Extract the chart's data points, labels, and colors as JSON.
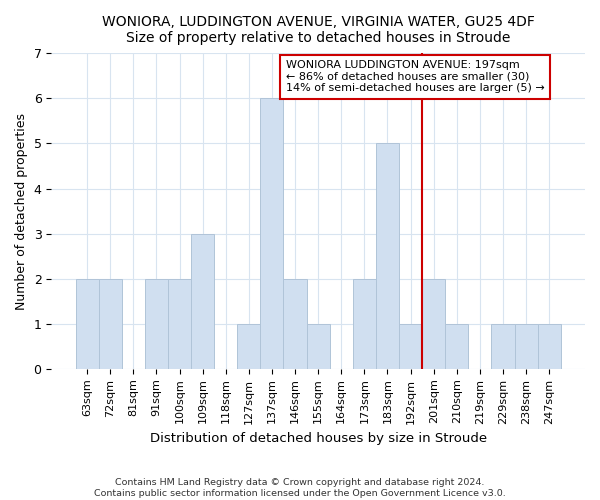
{
  "title1": "WONIORA, LUDDINGTON AVENUE, VIRGINIA WATER, GU25 4DF",
  "title2": "Size of property relative to detached houses in Stroude",
  "xlabel": "Distribution of detached houses by size in Stroude",
  "ylabel": "Number of detached properties",
  "categories": [
    "63sqm",
    "72sqm",
    "81sqm",
    "91sqm",
    "100sqm",
    "109sqm",
    "118sqm",
    "127sqm",
    "137sqm",
    "146sqm",
    "155sqm",
    "164sqm",
    "173sqm",
    "183sqm",
    "192sqm",
    "201sqm",
    "210sqm",
    "219sqm",
    "229sqm",
    "238sqm",
    "247sqm"
  ],
  "values": [
    2,
    2,
    0,
    2,
    2,
    3,
    0,
    1,
    6,
    2,
    1,
    0,
    2,
    5,
    1,
    2,
    1,
    0,
    1,
    1,
    1
  ],
  "bar_color": "#d0dff0",
  "bar_edge_color": "#b0c4d8",
  "vline_color": "#cc0000",
  "vline_x_index": 14.5,
  "annotation_title": "WONIORA LUDDINGTON AVENUE: 197sqm",
  "annotation_line1": "← 86% of detached houses are smaller (30)",
  "annotation_line2": "14% of semi-detached houses are larger (5) →",
  "annotation_box_color": "#cc0000",
  "ylim": [
    0,
    7
  ],
  "yticks": [
    0,
    1,
    2,
    3,
    4,
    5,
    6,
    7
  ],
  "footer1": "Contains HM Land Registry data © Crown copyright and database right 2024.",
  "footer2": "Contains public sector information licensed under the Open Government Licence v3.0.",
  "bg_color": "#ffffff",
  "plot_bg_color": "#ffffff",
  "grid_color": "#d8e4f0"
}
